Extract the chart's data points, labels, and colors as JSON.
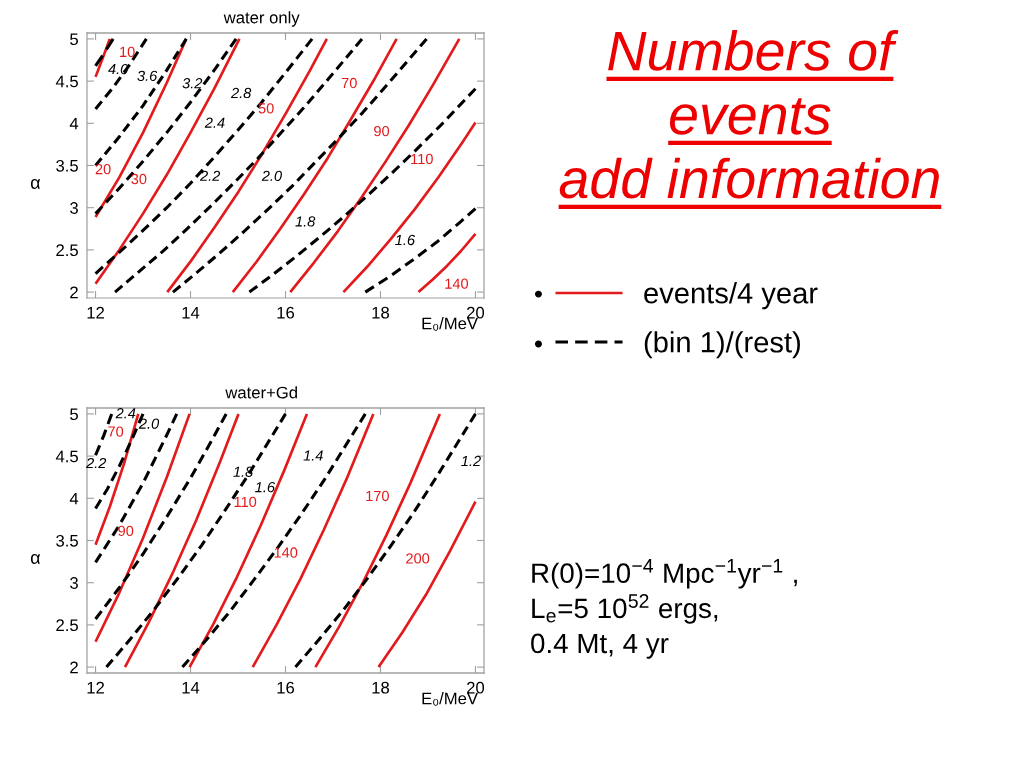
{
  "chart_data": [
    {
      "type": "line",
      "title": "water only",
      "xlabel": "E₀/MeV",
      "ylabel": "α",
      "xlim": [
        11.82,
        20.18
      ],
      "ylim": [
        1.93,
        5.07
      ],
      "xticks": [
        12,
        14,
        16,
        18,
        20
      ],
      "yticks": [
        2,
        2.5,
        3,
        3.5,
        4,
        4.5,
        5
      ],
      "legend": "bottom right",
      "series": [
        {
          "name": "events/4 year",
          "color": "#e31a1c",
          "line_style": "solid",
          "x": [
            12,
            12.15,
            12.3
          ],
          "values": [
            4.55,
            4.77,
            5.0
          ]
        },
        {
          "color": "#e31a1c",
          "line_style": "solid",
          "x": [
            12,
            12.5,
            13,
            13.5,
            13.91
          ],
          "values": [
            2.89,
            3.36,
            3.89,
            4.48,
            5.0
          ]
        },
        {
          "color": "#e31a1c",
          "line_style": "solid",
          "x": [
            12,
            12.5,
            13,
            13.5,
            14,
            14.5,
            15.03
          ],
          "values": [
            2.1,
            2.5,
            2.93,
            3.39,
            3.89,
            4.41,
            5.0
          ]
        },
        {
          "color": "#e31a1c",
          "line_style": "solid",
          "x": [
            13.51,
            14.01,
            14.51,
            15.01,
            15.51,
            16.01,
            16.51,
            16.87
          ],
          "values": [
            2,
            2.37,
            2.77,
            3.19,
            3.64,
            4.12,
            4.62,
            5.0
          ]
        },
        {
          "color": "#e31a1c",
          "line_style": "solid",
          "x": [
            14.89,
            15.39,
            15.89,
            16.39,
            16.89,
            17.39,
            17.89,
            18.34
          ],
          "values": [
            2,
            2.36,
            2.75,
            3.16,
            3.59,
            4.06,
            4.54,
            5.0
          ]
        },
        {
          "color": "#e31a1c",
          "line_style": "solid",
          "x": [
            16.1,
            16.6,
            17.1,
            17.6,
            18.1,
            18.6,
            19.1,
            19.66
          ],
          "values": [
            2,
            2.35,
            2.72,
            3.12,
            3.54,
            3.98,
            4.45,
            5.0
          ]
        },
        {
          "color": "#e31a1c",
          "line_style": "solid",
          "x": [
            17.22,
            17.72,
            18.22,
            18.72,
            19.22,
            19.72,
            20
          ],
          "values": [
            2,
            2.3,
            2.63,
            2.98,
            3.36,
            3.77,
            4.01
          ]
        },
        {
          "color": "#e31a1c",
          "line_style": "solid",
          "x": [
            18.8,
            19.1,
            19.4,
            19.7,
            20
          ],
          "values": [
            2,
            2.15,
            2.31,
            2.49,
            2.69
          ]
        },
        {
          "name": "(bin 1)/(rest)",
          "color": "#000000",
          "line_style": "dashed",
          "x": [
            12,
            12.18,
            12.37
          ],
          "values": [
            4.68,
            4.83,
            5.0
          ]
        },
        {
          "color": "#000000",
          "line_style": "dashed",
          "x": [
            12,
            12.35,
            12.7,
            13.07
          ],
          "values": [
            4.17,
            4.41,
            4.68,
            5.0
          ]
        },
        {
          "color": "#000000",
          "line_style": "dashed",
          "x": [
            12,
            12.5,
            13,
            13.5,
            13.91
          ],
          "values": [
            3.5,
            3.84,
            4.21,
            4.63,
            5.0
          ]
        },
        {
          "color": "#000000",
          "line_style": "dashed",
          "x": [
            12,
            12.5,
            13,
            13.5,
            14,
            14.5,
            14.96
          ],
          "values": [
            2.93,
            3.23,
            3.55,
            3.89,
            4.25,
            4.63,
            5.0
          ]
        },
        {
          "color": "#000000",
          "line_style": "dashed",
          "x": [
            12,
            12.5,
            13,
            13.5,
            14,
            14.5,
            15,
            15.5,
            16,
            16.56
          ],
          "values": [
            2.22,
            2.47,
            2.73,
            3.0,
            3.29,
            3.6,
            3.92,
            4.25,
            4.6,
            5.0
          ]
        },
        {
          "color": "#000000",
          "line_style": "dashed",
          "x": [
            12.41,
            12.91,
            13.41,
            13.91,
            14.41,
            14.91,
            15.41,
            15.91,
            16.41,
            16.91,
            17.61
          ],
          "values": [
            2,
            2.24,
            2.48,
            2.74,
            3.01,
            3.29,
            3.58,
            3.89,
            4.2,
            4.53,
            5.0
          ]
        },
        {
          "color": "#000000",
          "line_style": "dashed",
          "x": [
            13.63,
            14.13,
            14.63,
            15.13,
            15.63,
            16.13,
            16.63,
            17.13,
            17.63,
            18.13,
            18.97
          ],
          "values": [
            2,
            2.23,
            2.47,
            2.72,
            2.98,
            3.25,
            3.54,
            3.83,
            4.13,
            4.45,
            5.0
          ]
        },
        {
          "color": "#000000",
          "line_style": "dashed",
          "x": [
            15.24,
            15.74,
            16.24,
            16.74,
            17.24,
            17.74,
            18.24,
            18.74,
            19.24,
            20
          ],
          "values": [
            2,
            2.21,
            2.43,
            2.66,
            2.9,
            3.15,
            3.41,
            3.68,
            3.96,
            4.41
          ]
        },
        {
          "color": "#000000",
          "line_style": "dashed",
          "x": [
            17.68,
            18.18,
            18.68,
            19.18,
            19.68,
            20
          ],
          "values": [
            2,
            2.18,
            2.38,
            2.59,
            2.83,
            2.99
          ]
        }
      ],
      "annotations": [
        {
          "text": "10",
          "x": 12.25,
          "y": 4.92
        },
        {
          "text": "20",
          "x": 12.69,
          "y": 3.56
        },
        {
          "text": "30",
          "x": 13.59,
          "y": 3.48
        },
        {
          "text": "50",
          "x": 15.92,
          "y": 4.03
        },
        {
          "text": "70",
          "x": 17.67,
          "y": 4.33
        },
        {
          "text": "90",
          "x": 18.35,
          "y": 3.76
        },
        {
          "text": "110",
          "x": 19.3,
          "y": 3.43
        },
        {
          "text": "140",
          "x": 19.6,
          "y": 2.43
        },
        {
          "text": "4.0",
          "x": 12.09,
          "y": 4.76
        },
        {
          "text": "3.6",
          "x": 12.7,
          "y": 4.68
        },
        {
          "text": "3.2",
          "x": 13.3,
          "y": 4.46
        },
        {
          "text": "2.8",
          "x": 14.33,
          "y": 4.5
        },
        {
          "text": "2.4",
          "x": 14.9,
          "y": 3.86
        },
        {
          "text": "2.2",
          "x": 14.8,
          "y": 3.23
        },
        {
          "text": "2.0",
          "x": 16.1,
          "y": 3.23
        },
        {
          "text": "1.8",
          "x": 16.8,
          "y": 2.69
        },
        {
          "text": "1.6",
          "x": 18.9,
          "y": 2.47
        }
      ]
    },
    {
      "type": "line",
      "title": "water+Gd",
      "xlabel": "E₀/MeV",
      "ylabel": "α",
      "xlim": [
        11.82,
        20.18
      ],
      "ylim": [
        1.93,
        5.07
      ],
      "xticks": [
        12,
        14,
        16,
        18,
        20
      ],
      "yticks": [
        2,
        2.5,
        3,
        3.5,
        4,
        4.5,
        5
      ],
      "series": [
        {
          "color": "#e31a1c",
          "line_style": "solid",
          "x": [
            12,
            12.3,
            12.6,
            12.9
          ],
          "values": [
            3.45,
            3.9,
            4.41,
            5.0
          ]
        },
        {
          "color": "#e31a1c",
          "line_style": "solid",
          "x": [
            12,
            12.5,
            13,
            13.5,
            13.98
          ],
          "values": [
            2.3,
            2.88,
            3.53,
            4.25,
            5.0
          ]
        },
        {
          "color": "#e31a1c",
          "line_style": "solid",
          "x": [
            12.62,
            13.12,
            13.62,
            14.12,
            14.62,
            15.01
          ],
          "values": [
            2,
            2.53,
            3.11,
            3.74,
            4.43,
            5.0
          ]
        },
        {
          "color": "#e31a1c",
          "line_style": "solid",
          "x": [
            13.98,
            14.48,
            14.98,
            15.48,
            15.98,
            16.45
          ],
          "values": [
            2,
            2.51,
            3.07,
            3.68,
            4.34,
            5.0
          ]
        },
        {
          "color": "#e31a1c",
          "line_style": "solid",
          "x": [
            15.31,
            15.81,
            16.31,
            16.81,
            17.31,
            17.85
          ],
          "values": [
            2,
            2.5,
            3.04,
            3.63,
            4.26,
            5.0
          ]
        },
        {
          "color": "#e31a1c",
          "line_style": "solid",
          "x": [
            16.63,
            17.13,
            17.63,
            18.13,
            18.63,
            19.25
          ],
          "values": [
            2,
            2.48,
            3.0,
            3.57,
            4.18,
            5.0
          ]
        },
        {
          "color": "#e31a1c",
          "line_style": "solid",
          "x": [
            17.96,
            18.46,
            18.96,
            19.46,
            20
          ],
          "values": [
            2,
            2.41,
            2.86,
            3.37,
            3.96
          ]
        },
        {
          "color": "#000000",
          "line_style": "dashed",
          "x": [
            12,
            12.17,
            12.34
          ],
          "values": [
            4.51,
            4.74,
            5.0
          ]
        },
        {
          "color": "#000000",
          "line_style": "dashed",
          "x": [
            12,
            12.25,
            12.5,
            12.75,
            13
          ],
          "values": [
            3.88,
            4.11,
            4.38,
            4.68,
            5.0
          ]
        },
        {
          "color": "#000000",
          "line_style": "dashed",
          "x": [
            12,
            12.5,
            13,
            13.5,
            13.71
          ],
          "values": [
            3.24,
            3.68,
            4.18,
            4.75,
            5.0
          ]
        },
        {
          "color": "#000000",
          "line_style": "dashed",
          "x": [
            12,
            12.5,
            13,
            13.5,
            14,
            14.5,
            14.75
          ],
          "values": [
            2.57,
            2.94,
            3.34,
            3.78,
            4.24,
            4.74,
            5.0
          ]
        },
        {
          "color": "#000000",
          "line_style": "dashed",
          "x": [
            12.23,
            12.73,
            13.23,
            13.73,
            14.23,
            14.73,
            15.23,
            16.0
          ],
          "values": [
            2,
            2.33,
            2.68,
            3.05,
            3.44,
            3.86,
            4.29,
            5.0
          ]
        },
        {
          "color": "#000000",
          "line_style": "dashed",
          "x": [
            13.83,
            14.33,
            14.83,
            15.33,
            15.83,
            16.33,
            16.83,
            17.68
          ],
          "values": [
            2,
            2.32,
            2.66,
            3.03,
            3.41,
            3.81,
            4.23,
            5.0
          ]
        },
        {
          "color": "#000000",
          "line_style": "dashed",
          "x": [
            16.21,
            16.71,
            17.21,
            17.71,
            18.21,
            18.71,
            19.21,
            20
          ],
          "values": [
            2,
            2.33,
            2.67,
            3.04,
            3.43,
            3.84,
            4.28,
            5.0
          ]
        }
      ],
      "annotations": [
        {
          "text": "70",
          "x": 12.75,
          "y": 4.71
        },
        {
          "text": "90",
          "x": 13.05,
          "y": 3.6
        },
        {
          "text": "110",
          "x": 15.58,
          "y": 3.81
        },
        {
          "text": "140",
          "x": 16.45,
          "y": 3.21
        },
        {
          "text": "170",
          "x": 18.38,
          "y": 3.88
        },
        {
          "text": "200",
          "x": 19.23,
          "y": 3.14
        },
        {
          "text": "2.4",
          "x": 12.25,
          "y": 4.86
        },
        {
          "text": "2.2",
          "x": 12.4,
          "y": 4.27
        },
        {
          "text": "2.0",
          "x": 13.6,
          "y": 4.87
        },
        {
          "text": "1.8",
          "x": 14.37,
          "y": 4.61
        },
        {
          "text": "1.6",
          "x": 15.18,
          "y": 4.25
        },
        {
          "text": "1.4",
          "x": 16.97,
          "y": 4.36
        },
        {
          "text": "1.2",
          "x": 19.52,
          "y": 4.56
        }
      ]
    },
    {
      "type": "other",
      "title": "Numbers of\nevents\nadd information",
      "annotations": [
        "R(0)=10$^{−4}$ Mpc$^{−1}$yr$^{−1}$ ,",
        "L$_{e}$=5 10$^{52}$ ergs,",
        "0.4 Mt, 4 yr"
      ]
    }
  ]
}
